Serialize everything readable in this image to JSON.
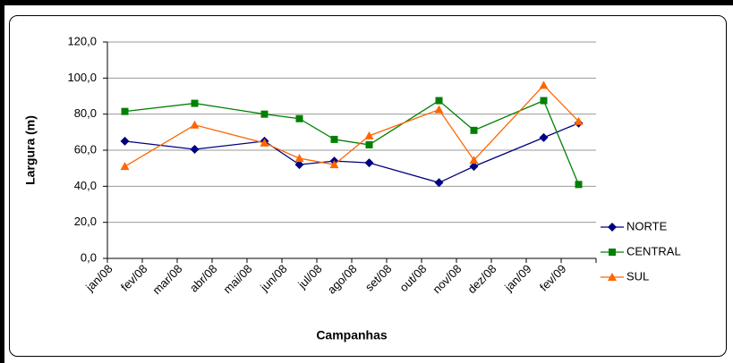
{
  "chart_data": {
    "type": "line",
    "xlabel": "Campanhas",
    "ylabel": "Largura (m)",
    "xticks": [
      "jan/08",
      "fev/08",
      "mar/08",
      "abr/08",
      "mai/08",
      "jun/08",
      "jul/08",
      "ago/08",
      "set/08",
      "out/08",
      "nov/08",
      "dez/08",
      "jan/09",
      "fev/09"
    ],
    "x": [
      "jan/08",
      "mar/08",
      "mai/08",
      "jun/08",
      "jul/08",
      "ago/08",
      "out/08",
      "nov/08",
      "jan/09",
      "fev/09"
    ],
    "series": [
      {
        "name": "NORTE",
        "color": "#000080",
        "marker": "diamond",
        "values": [
          65,
          60.5,
          65,
          52,
          54,
          53,
          42,
          51,
          67,
          75
        ]
      },
      {
        "name": "CENTRAL",
        "color": "#008000",
        "marker": "square",
        "values": [
          81.5,
          86,
          80,
          77.5,
          66,
          63,
          87.5,
          71,
          87.5,
          41
        ]
      },
      {
        "name": "SUL",
        "color": "#ff6600",
        "marker": "triangle",
        "values": [
          51,
          74,
          64,
          55.5,
          52,
          68,
          82.5,
          54.5,
          96,
          76
        ]
      }
    ],
    "ylim": [
      0,
      120
    ],
    "yticks": [
      {
        "value": 0,
        "label": "0,0"
      },
      {
        "value": 20,
        "label": "20,0"
      },
      {
        "value": 40,
        "label": "40,0"
      },
      {
        "value": 60,
        "label": "60,0"
      },
      {
        "value": 80,
        "label": "80,0"
      },
      {
        "value": 100,
        "label": "100,0"
      },
      {
        "value": 120,
        "label": "120,0"
      }
    ],
    "grid": true,
    "legend": "right"
  }
}
